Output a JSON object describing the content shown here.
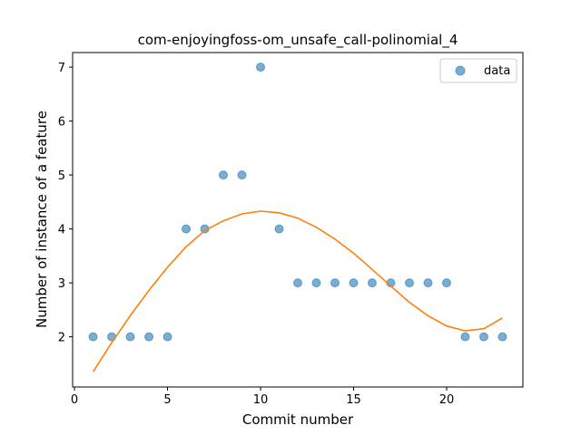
{
  "chart_data": {
    "type": "scatter",
    "title": "com-enjoyingfoss-om_unsafe_call-polinomial_4",
    "xlabel": "Commit number",
    "ylabel": "Number of instance of a feature",
    "xlim": [
      -0.1,
      24.1
    ],
    "ylim": [
      1.07,
      7.27
    ],
    "xticks": [
      0,
      5,
      10,
      15,
      20
    ],
    "yticks": [
      2,
      3,
      4,
      5,
      6,
      7
    ],
    "grid": false,
    "legend_position": "top-right",
    "colors": {
      "data": "#1f77b4",
      "fit": "#ff7f0e"
    },
    "series": [
      {
        "name": "data",
        "kind": "scatter",
        "x": [
          1,
          2,
          3,
          4,
          5,
          6,
          7,
          8,
          9,
          10,
          11,
          12,
          13,
          14,
          15,
          16,
          17,
          18,
          19,
          20,
          21,
          22,
          23
        ],
        "y": [
          2,
          2,
          2,
          2,
          2,
          4,
          4,
          5,
          5,
          7,
          4,
          3,
          3,
          3,
          3,
          3,
          3,
          3,
          3,
          3,
          2,
          2,
          2
        ]
      },
      {
        "kind": "line",
        "x": [
          1,
          2,
          3,
          4,
          5,
          6,
          7,
          8,
          9,
          10,
          11,
          12,
          13,
          14,
          15,
          16,
          17,
          18,
          19,
          20,
          21,
          22,
          23
        ],
        "y": [
          1.35,
          1.89,
          2.39,
          2.86,
          3.29,
          3.67,
          3.97,
          4.15,
          4.28,
          4.33,
          4.3,
          4.2,
          4.03,
          3.81,
          3.55,
          3.25,
          2.94,
          2.64,
          2.39,
          2.2,
          2.11,
          2.15,
          2.35
        ]
      }
    ]
  }
}
